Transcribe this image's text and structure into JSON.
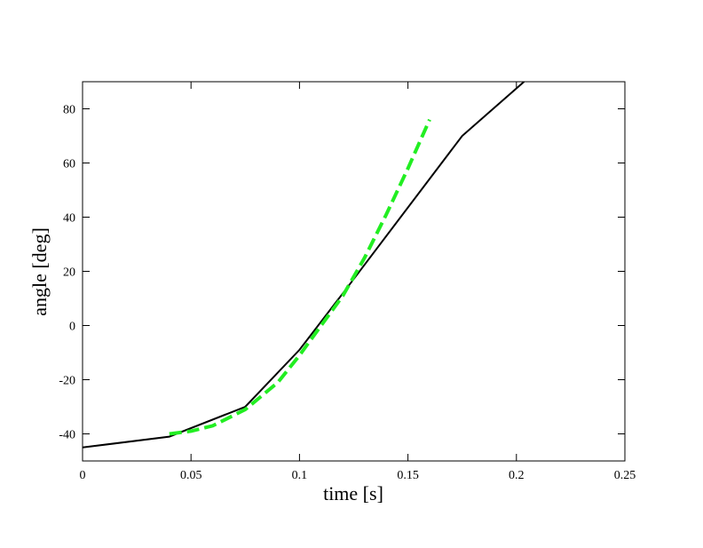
{
  "chart_data": {
    "type": "line",
    "xlabel": "time [s]",
    "ylabel": "angle [deg]",
    "xlim": [
      0,
      0.25
    ],
    "xticks": [
      0,
      0.05,
      0.1,
      0.15,
      0.2,
      0.25
    ],
    "ylim": [
      -50,
      90
    ],
    "yticks": [
      -40,
      -20,
      0,
      20,
      40,
      60,
      80
    ],
    "series": [
      {
        "color": "#000000",
        "style": "solid",
        "x": [
          0,
          0.04,
          0.075,
          0.1,
          0.122,
          0.175,
          0.2035
        ],
        "values": [
          -45,
          -41,
          -30,
          -9,
          14,
          70,
          90
        ]
      },
      {
        "color": "#22ee22",
        "style": "dashed",
        "x": [
          0.04,
          0.05,
          0.06,
          0.075,
          0.09,
          0.1,
          0.11,
          0.12,
          0.13,
          0.14,
          0.15,
          0.16
        ],
        "values": [
          -40,
          -39,
          -37,
          -31,
          -21,
          -11,
          0,
          11,
          25,
          41,
          58,
          76
        ]
      }
    ]
  }
}
